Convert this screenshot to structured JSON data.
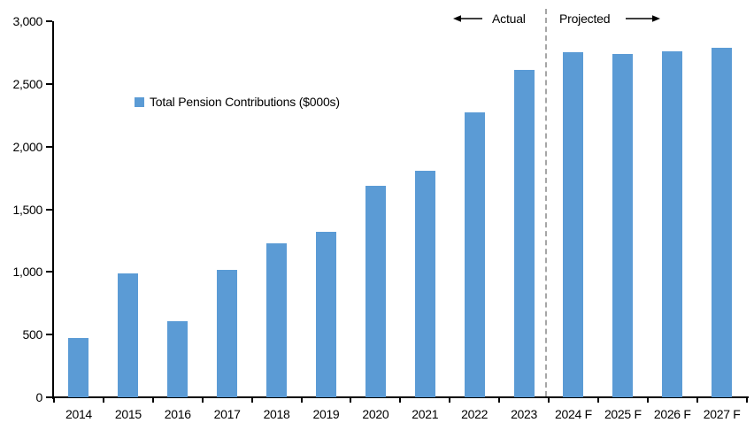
{
  "chart_data": {
    "type": "bar",
    "title": "",
    "legend_label": "Total Pension Contributions ($000s)",
    "categories": [
      "2014",
      "2015",
      "2016",
      "2017",
      "2018",
      "2019",
      "2020",
      "2021",
      "2022",
      "2023",
      "2024 F",
      "2025 F",
      "2026 F",
      "2027 F"
    ],
    "values": [
      470,
      990,
      610,
      1020,
      1230,
      1320,
      1690,
      1810,
      2270,
      2610,
      2750,
      2740,
      2760,
      2790
    ],
    "xlabel": "",
    "ylabel": "",
    "ylim": [
      0,
      3000
    ],
    "ytick_step": 500,
    "ytick_labels": [
      "0",
      "500",
      "1,000",
      "1,500",
      "2,000",
      "2,500",
      "3,000"
    ],
    "grid": false,
    "legend_position": "inside-upper-left",
    "bar_color": "#5B9BD5",
    "axis_color": "#000000",
    "annotations": {
      "actual_label": "Actual",
      "projected_label": "Projected",
      "divider_after_category": "2023",
      "divider_color": "#A6A6A6",
      "arrow_color": "#000000"
    }
  }
}
